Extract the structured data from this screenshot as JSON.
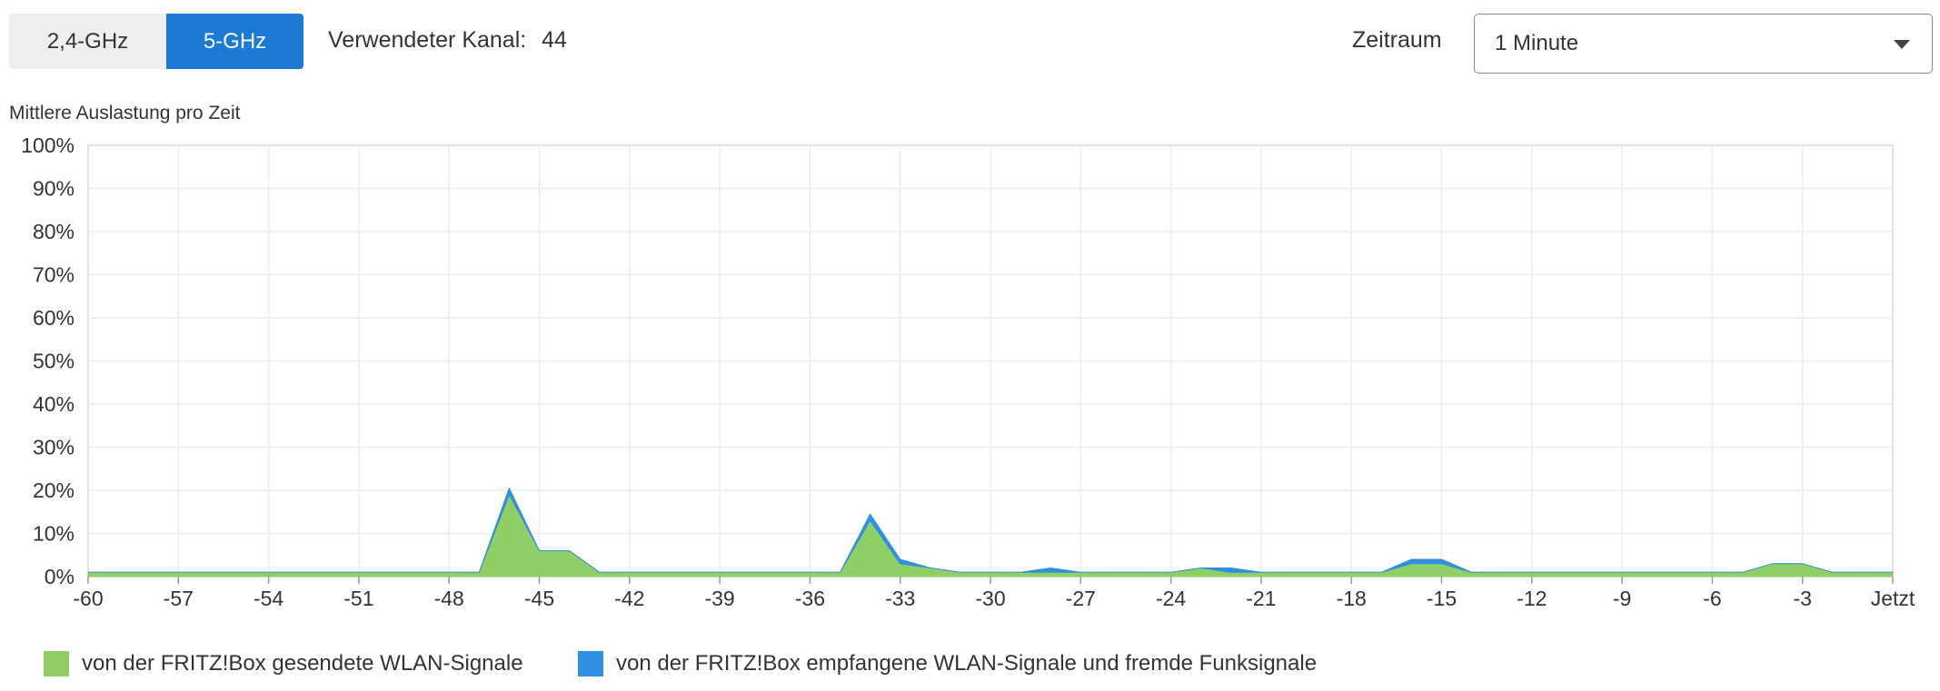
{
  "band_toggle": {
    "band_24": "2,4-GHz",
    "band_5": "5-GHz",
    "active": "5-GHz"
  },
  "channel": {
    "label": "Verwendeter Kanal:",
    "value": "44"
  },
  "period": {
    "label": "Zeitraum",
    "selected": "1 Minute"
  },
  "chart_data": {
    "type": "area",
    "title": "Mittlere Auslastung pro Zeit",
    "xlabel": "",
    "ylabel": "",
    "x_ticks": [
      "-60",
      "-57",
      "-54",
      "-51",
      "-48",
      "-45",
      "-42",
      "-39",
      "-36",
      "-33",
      "-30",
      "-27",
      "-24",
      "-21",
      "-18",
      "-15",
      "-12",
      "-9",
      "-6",
      "-3",
      "Jetzt"
    ],
    "y_ticks": [
      "0%",
      "10%",
      "20%",
      "30%",
      "40%",
      "50%",
      "60%",
      "70%",
      "80%",
      "90%",
      "100%"
    ],
    "xlim": [
      -60,
      0
    ],
    "ylim": [
      0,
      100
    ],
    "grid": true,
    "stacked": true,
    "x": [
      -60,
      -59,
      -58,
      -57,
      -56,
      -55,
      -54,
      -53,
      -52,
      -51,
      -50,
      -49,
      -48,
      -47,
      -46,
      -45,
      -44,
      -43,
      -42,
      -41,
      -40,
      -39,
      -38,
      -37,
      -36,
      -35,
      -34,
      -33,
      -32,
      -31,
      -30,
      -29,
      -28,
      -27,
      -26,
      -25,
      -24,
      -23,
      -22,
      -21,
      -20,
      -19,
      -18,
      -17,
      -16,
      -15,
      -14,
      -13,
      -12,
      -11,
      -10,
      -9,
      -8,
      -7,
      -6,
      -5,
      -4,
      -3,
      -2,
      -1,
      0
    ],
    "series": [
      {
        "name": "von der FRITZ!Box gesendete WLAN-Signale",
        "color": "#8fcf66",
        "values": [
          1,
          1,
          1,
          1,
          1,
          1,
          1,
          1,
          1,
          1,
          1,
          1,
          1,
          1,
          19,
          6,
          6,
          1,
          1,
          1,
          1,
          1,
          1,
          1,
          1,
          1,
          13,
          3,
          2,
          1,
          1,
          1,
          1,
          1,
          1,
          1,
          1,
          2,
          1,
          1,
          1,
          1,
          1,
          1,
          3,
          3,
          1,
          1,
          1,
          1,
          1,
          1,
          1,
          1,
          1,
          1,
          3,
          3,
          1,
          1,
          1
        ]
      },
      {
        "name": "von der FRITZ!Box empfangene WLAN-Signale und fremde Funksignale",
        "color": "#2f8fe3",
        "values": [
          0,
          0,
          0,
          0,
          0,
          0,
          0,
          0,
          0,
          0,
          0,
          0,
          0,
          0,
          1.5,
          0,
          0,
          0,
          0,
          0,
          0,
          0,
          0,
          0,
          0,
          0,
          1.5,
          1,
          0,
          0,
          0,
          0,
          1,
          0,
          0,
          0,
          0,
          0,
          1,
          0,
          0,
          0,
          0,
          0,
          1,
          1,
          0,
          0,
          0,
          0,
          0,
          0,
          0,
          0,
          0,
          0,
          0,
          0,
          0,
          0,
          0
        ]
      }
    ]
  }
}
